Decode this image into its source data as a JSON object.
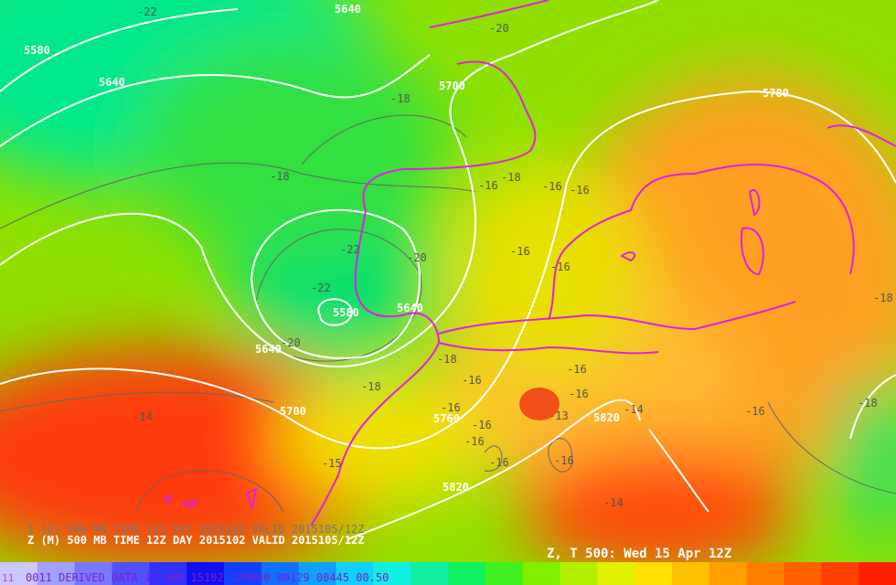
{
  "map": {
    "title": "Z, T 500: Wed 15 Apr 12Z",
    "caption": "Z (M) 500 MB TIME 12Z DAY 2015102 VALID 2015105/12Z",
    "caption_shadow": "1 (C) 500 MB TIME 12Z DAY 2015102 VALID 2015105/12Z",
    "footer_index": "11",
    "footer": "0011 DERIVED DATA 12 APR 15102 120000 00129 00445 00.50",
    "height_labels": [
      "5640",
      "5580",
      "5640",
      "5700",
      "5780",
      "5580",
      "5640",
      "5640",
      "5700",
      "5760",
      "5820",
      "5820"
    ],
    "temperature_labels": [
      "-22",
      "-20",
      "-18",
      "-18",
      "-18",
      "-16",
      "-16",
      "-16",
      "-22",
      "-20",
      "-16",
      "-16",
      "-22",
      "-20",
      "-18",
      "-18",
      "-16",
      "-16",
      "-16",
      "-16",
      "-13",
      "-14",
      "-16",
      "-16",
      "-16",
      "-16",
      "-14",
      "-15",
      "-14",
      "-16",
      "-18",
      "-18"
    ]
  }
}
